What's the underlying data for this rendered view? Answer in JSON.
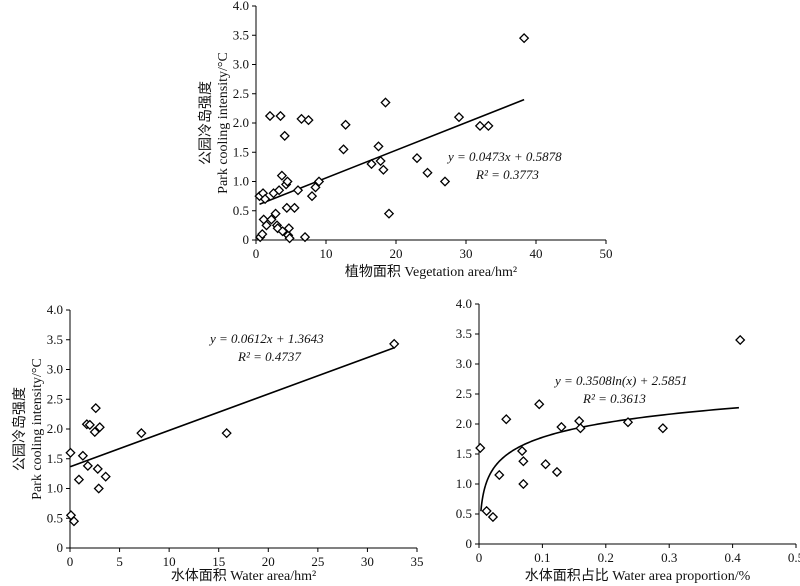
{
  "chart_data": [
    {
      "type": "scatter",
      "title": "",
      "xlabel": "植物面积 Vegetation area/hm²",
      "ylabel_cn": "公园冷岛强度",
      "ylabel_en": "Park cooling intensity/°C",
      "xlim": [
        0,
        50
      ],
      "ylim": [
        0,
        4.0
      ],
      "xticks": [
        0,
        10,
        20,
        30,
        40,
        50
      ],
      "yticks": [
        0,
        0.5,
        1.0,
        1.5,
        2.0,
        2.5,
        3.0,
        3.5,
        4.0
      ],
      "xtick_labels": [
        "0",
        "10",
        "20",
        "30",
        "40",
        "50"
      ],
      "ytick_labels": [
        "0",
        "0.5",
        "1.0",
        "1.5",
        "2.0",
        "2.5",
        "3.0",
        "3.5",
        "4.0"
      ],
      "equation": "y = 0.0473x + 0.5878",
      "r2": "R² = 0.3773",
      "fit": {
        "kind": "linear",
        "slope": 0.0473,
        "intercept": 0.5878,
        "x_range": [
          0.5,
          38.3
        ]
      },
      "points": [
        [
          0.5,
          0.75
        ],
        [
          0.6,
          0.05
        ],
        [
          0.9,
          0.1
        ],
        [
          1.0,
          0.8
        ],
        [
          1.1,
          0.35
        ],
        [
          1.3,
          0.7
        ],
        [
          1.5,
          0.25
        ],
        [
          2.0,
          2.12
        ],
        [
          2.2,
          0.35
        ],
        [
          2.5,
          0.8
        ],
        [
          2.8,
          0.45
        ],
        [
          3.0,
          0.25
        ],
        [
          3.1,
          0.2
        ],
        [
          3.3,
          0.85
        ],
        [
          3.5,
          2.12
        ],
        [
          3.7,
          1.1
        ],
        [
          3.8,
          0.15
        ],
        [
          4.1,
          1.78
        ],
        [
          4.3,
          0.95
        ],
        [
          4.4,
          0.55
        ],
        [
          4.5,
          1.0
        ],
        [
          4.6,
          0.08
        ],
        [
          4.7,
          0.2
        ],
        [
          4.8,
          0.03
        ],
        [
          5.5,
          0.55
        ],
        [
          6.0,
          0.85
        ],
        [
          6.5,
          2.07
        ],
        [
          7.0,
          0.05
        ],
        [
          7.5,
          2.05
        ],
        [
          8.0,
          0.75
        ],
        [
          8.5,
          0.9
        ],
        [
          9.0,
          1.0
        ],
        [
          12.5,
          1.55
        ],
        [
          12.8,
          1.97
        ],
        [
          16.5,
          1.3
        ],
        [
          17.5,
          1.6
        ],
        [
          17.8,
          1.35
        ],
        [
          18.2,
          1.2
        ],
        [
          18.5,
          2.35
        ],
        [
          19.0,
          0.45
        ],
        [
          23.0,
          1.4
        ],
        [
          24.5,
          1.15
        ],
        [
          27.0,
          1.0
        ],
        [
          29.0,
          2.1
        ],
        [
          32.0,
          1.95
        ],
        [
          33.2,
          1.95
        ],
        [
          38.3,
          3.45
        ]
      ]
    },
    {
      "type": "scatter",
      "title": "",
      "xlabel": "水体面积 Water area/hm²",
      "ylabel_cn": "公园冷岛强度",
      "ylabel_en": "Park cooling intensity/°C",
      "xlim": [
        0,
        35
      ],
      "ylim": [
        0,
        4.0
      ],
      "xticks": [
        0,
        5,
        10,
        15,
        20,
        25,
        30,
        35
      ],
      "yticks": [
        0,
        0.5,
        1.0,
        1.5,
        2.0,
        2.5,
        3.0,
        3.5,
        4.0
      ],
      "xtick_labels": [
        "0",
        "5",
        "10",
        "15",
        "20",
        "25",
        "30",
        "35"
      ],
      "ytick_labels": [
        "0",
        "0.5",
        "1.0",
        "1.5",
        "2.0",
        "2.5",
        "3.0",
        "3.5",
        "4.0"
      ],
      "equation": "y = 0.0612x + 1.3643",
      "r2": "R² = 0.4737",
      "fit": {
        "kind": "linear",
        "slope": 0.0612,
        "intercept": 1.3643,
        "x_range": [
          0.05,
          32.7
        ]
      },
      "points": [
        [
          0.05,
          1.6
        ],
        [
          0.1,
          0.55
        ],
        [
          0.4,
          0.45
        ],
        [
          0.9,
          1.15
        ],
        [
          1.3,
          1.55
        ],
        [
          1.7,
          2.08
        ],
        [
          1.8,
          1.38
        ],
        [
          2.0,
          2.07
        ],
        [
          2.5,
          1.95
        ],
        [
          2.6,
          2.35
        ],
        [
          2.8,
          1.33
        ],
        [
          2.9,
          1.0
        ],
        [
          3.0,
          2.03
        ],
        [
          3.6,
          1.2
        ],
        [
          7.2,
          1.93
        ],
        [
          15.8,
          1.93
        ],
        [
          32.7,
          3.43
        ]
      ]
    },
    {
      "type": "scatter",
      "title": "",
      "xlabel": "水体面积占比 Water area proportion/%",
      "ylabel_cn": "",
      "ylabel_en": "",
      "xlim": [
        0,
        0.5
      ],
      "ylim": [
        0,
        4.0
      ],
      "xticks": [
        0,
        0.1,
        0.2,
        0.3,
        0.4,
        0.5
      ],
      "yticks": [
        0,
        0.5,
        1.0,
        1.5,
        2.0,
        2.5,
        3.0,
        3.5,
        4.0
      ],
      "xtick_labels": [
        "0",
        "0.1",
        "0.2",
        "0.3",
        "0.4",
        "0.5"
      ],
      "ytick_labels": [
        "0",
        "0.5",
        "1.0",
        "1.5",
        "2.0",
        "2.5",
        "3.0",
        "3.5",
        "4.0"
      ],
      "equation": "y = 0.3508ln(x) + 2.5851",
      "r2": "R² = 0.3613",
      "fit": {
        "kind": "log",
        "a": 0.3508,
        "b": 2.5851,
        "x_range": [
          0.003,
          0.41
        ]
      },
      "points": [
        [
          0.002,
          1.6
        ],
        [
          0.012,
          0.55
        ],
        [
          0.022,
          0.45
        ],
        [
          0.032,
          1.15
        ],
        [
          0.043,
          2.08
        ],
        [
          0.068,
          1.55
        ],
        [
          0.07,
          1.38
        ],
        [
          0.07,
          1.0
        ],
        [
          0.095,
          2.33
        ],
        [
          0.105,
          1.33
        ],
        [
          0.123,
          1.2
        ],
        [
          0.13,
          1.95
        ],
        [
          0.158,
          2.05
        ],
        [
          0.16,
          1.93
        ],
        [
          0.235,
          2.03
        ],
        [
          0.29,
          1.93
        ],
        [
          0.412,
          3.4
        ]
      ]
    }
  ]
}
